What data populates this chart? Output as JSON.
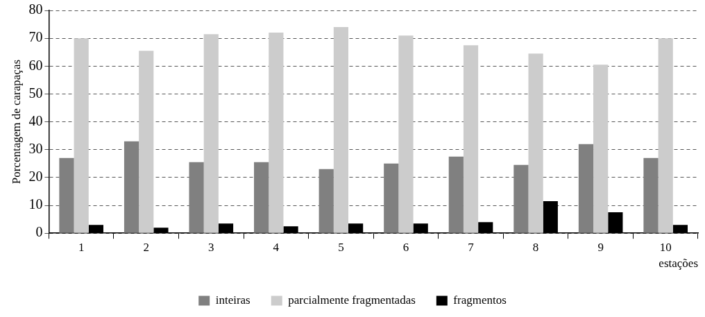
{
  "chart_data": {
    "type": "bar",
    "xlabel": "estações",
    "ylabel": "Porcentagem de carapaças",
    "categories": [
      "1",
      "2",
      "3",
      "4",
      "5",
      "6",
      "7",
      "8",
      "9",
      "10"
    ],
    "series": [
      {
        "name": "inteiras",
        "color": "#808080",
        "values": [
          27,
          33,
          25.5,
          25.5,
          23,
          25,
          27.5,
          24.5,
          32,
          27
        ]
      },
      {
        "name": "parcialmente fragmentadas",
        "color": "#cccccc",
        "values": [
          70,
          65.5,
          71.5,
          72,
          74,
          71,
          67.5,
          64.5,
          60.5,
          70
        ]
      },
      {
        "name": "fragmentos",
        "color": "#000000",
        "values": [
          3,
          2,
          3.5,
          2.5,
          3.5,
          3.5,
          4,
          11.5,
          7.5,
          3
        ]
      }
    ],
    "ylim": [
      0,
      80
    ],
    "yticks": [
      0,
      10,
      20,
      30,
      40,
      50,
      60,
      70,
      80
    ],
    "grid": "y",
    "legend": "bottom"
  }
}
